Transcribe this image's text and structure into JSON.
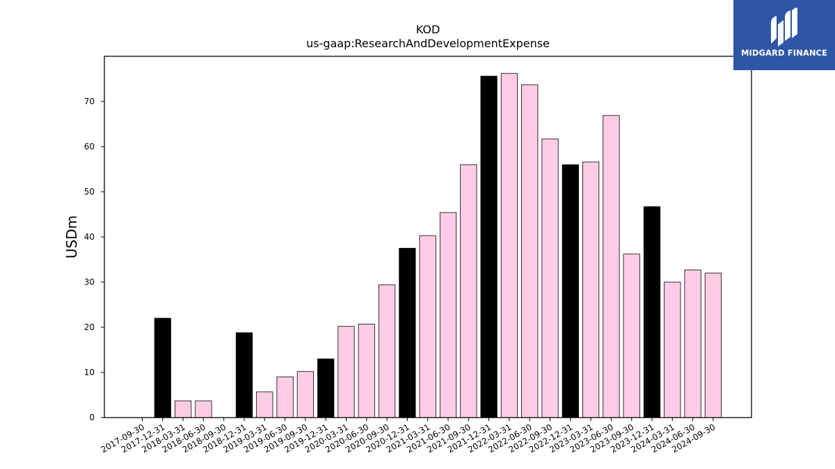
{
  "chart_data": {
    "type": "bar",
    "title": "KOD",
    "subtitle": "us-gaap:ResearchAndDevelopmentExpense",
    "xlabel": "",
    "ylabel": "USDm",
    "ylim": [
      0,
      80
    ],
    "yticks": [
      0,
      10,
      20,
      30,
      40,
      50,
      60,
      70
    ],
    "grid": false,
    "categories": [
      "2017-09-30",
      "2017-12-31",
      "2018-03-31",
      "2018-06-30",
      "2018-09-30",
      "2018-12-31",
      "2019-03-31",
      "2019-06-30",
      "2019-09-30",
      "2019-12-31",
      "2020-03-31",
      "2020-06-30",
      "2020-09-30",
      "2020-12-31",
      "2021-03-31",
      "2021-06-30",
      "2021-09-30",
      "2021-12-31",
      "2022-03-31",
      "2022-06-30",
      "2022-09-30",
      "2022-12-31",
      "2023-03-31",
      "2023-06-30",
      "2023-09-30",
      "2023-12-31",
      "2024-03-31",
      "2024-06-30",
      "2024-09-30"
    ],
    "values": [
      0,
      22.0,
      3.7,
      3.7,
      0,
      18.8,
      5.7,
      9.0,
      10.2,
      13.0,
      20.2,
      20.7,
      29.4,
      37.5,
      40.3,
      45.4,
      56.0,
      75.6,
      76.2,
      73.7,
      61.7,
      56.0,
      56.6,
      66.9,
      36.2,
      46.7,
      30.0,
      32.7,
      32.0
    ],
    "annual_color": "#000000",
    "quarter_color": "#ffcce6",
    "edge_color": "#000000",
    "annual_periods": [
      "2017-12-31",
      "2018-12-31",
      "2019-12-31",
      "2020-12-31",
      "2021-12-31",
      "2022-12-31",
      "2023-12-31"
    ]
  },
  "logo": {
    "text": "MIDGARD FINANCE",
    "background": "#2d56a6",
    "icon": "midgard-logo-icon"
  }
}
